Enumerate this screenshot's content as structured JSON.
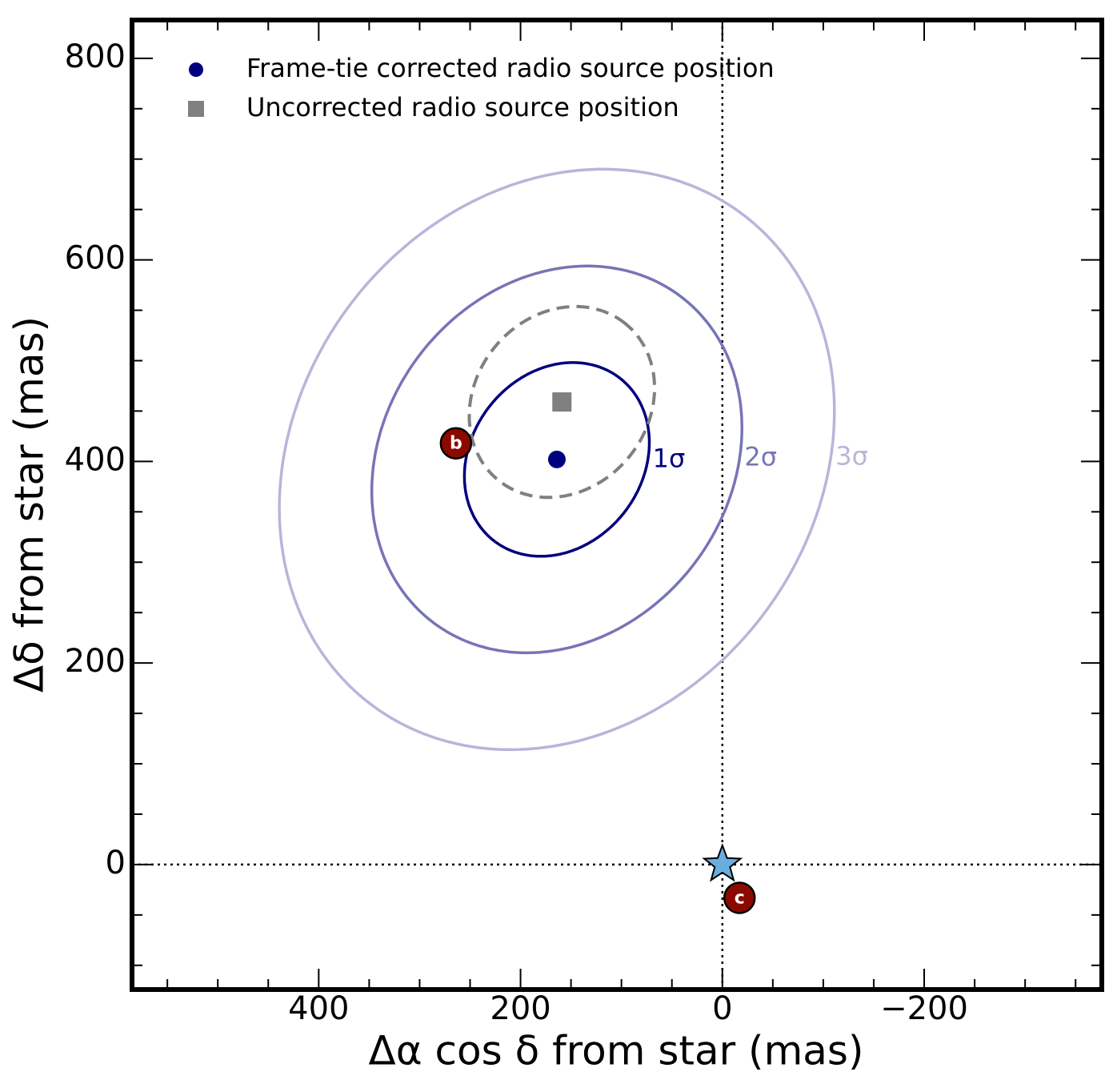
{
  "chart_data": {
    "type": "scatter",
    "xlabel": "Δα cos δ from star (mas)",
    "ylabel": "Δδ from star (mas)",
    "xlim": [
      585,
      -376
    ],
    "ylim": [
      -124,
      838
    ],
    "xticks": [
      400,
      200,
      0,
      {
        "value": -200,
        "label": "−200"
      }
    ],
    "yticks": [
      0,
      200,
      400,
      600,
      800
    ],
    "xminorticks": [
      550,
      500,
      450,
      350,
      300,
      250,
      150,
      100,
      50,
      -50,
      -100,
      -150,
      -250,
      -300,
      -350
    ],
    "yminorticks": [
      -100,
      -50,
      50,
      100,
      150,
      250,
      300,
      350,
      450,
      500,
      550,
      650,
      700,
      750
    ],
    "legend": "upper left",
    "series": [
      {
        "name": "Frame-tie corrected radio source position",
        "color": "#00007f",
        "marker": "circle",
        "x": [
          164
        ],
        "y": [
          402
        ]
      },
      {
        "name": "Uncorrected radio source position",
        "color": "#808080",
        "marker": "square",
        "x": [
          159
        ],
        "y": [
          459
        ]
      }
    ],
    "ellipses": [
      {
        "label": "1σ",
        "color": "#00007f",
        "dash": false,
        "cx": 164,
        "cy": 402,
        "semi_major": 102,
        "semi_minor": 85,
        "angle": 52.7
      },
      {
        "label": "2σ",
        "color": "#7774b6",
        "dash": false,
        "cx": 164,
        "cy": 402,
        "semi_major": 203,
        "semi_minor": 171,
        "angle": 52.7
      },
      {
        "label": "3σ",
        "color": "#b8b5db",
        "dash": false,
        "cx": 164,
        "cy": 402,
        "semi_major": 305,
        "semi_minor": 256,
        "angle": 52.7
      },
      {
        "color": "#808080",
        "dash": true,
        "cx": 159,
        "cy": 459,
        "semi_major": 100,
        "semi_minor": 86,
        "angle": 51
      }
    ],
    "planets": [
      {
        "label": "b",
        "x": 264,
        "y": 418,
        "color": "#8b0a00"
      },
      {
        "label": "c",
        "x": -17,
        "y": -33,
        "color": "#8b0a00"
      }
    ],
    "star": {
      "x": 0,
      "y": 0,
      "color": "#6aaee0"
    },
    "axvline": 0,
    "axhline": 0
  }
}
